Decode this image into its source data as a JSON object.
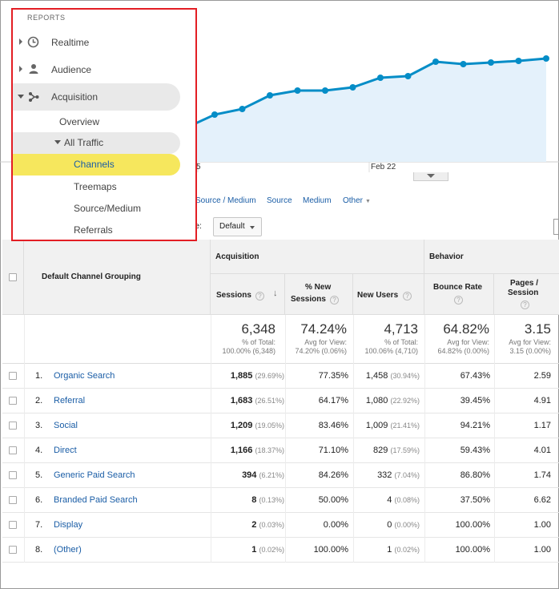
{
  "chart_data": {
    "type": "area",
    "x_tick_labels": [
      "5",
      "Feb 22"
    ],
    "values": [
      155,
      150,
      147,
      159,
      143,
      136,
      119,
      113,
      113,
      109,
      97,
      95,
      77,
      80,
      78,
      76,
      73
    ],
    "color": "#058dc7",
    "fill": "#e4f1fb"
  },
  "sidebar": {
    "title": "REPORTS",
    "items": [
      {
        "label": "Realtime",
        "icon": "clock-icon"
      },
      {
        "label": "Audience",
        "icon": "person-icon"
      },
      {
        "label": "Acquisition",
        "icon": "acquisition-icon"
      },
      {
        "label": "Overview"
      },
      {
        "label": "All Traffic"
      },
      {
        "label": "Channels"
      },
      {
        "label": "Treemaps"
      },
      {
        "label": "Source/Medium"
      },
      {
        "label": "Referrals"
      }
    ],
    "highlight_color": "#f6e75d",
    "border_color": "#e31e24"
  },
  "dimensions": {
    "links": [
      "Source / Medium",
      "Source",
      "Medium",
      "Other"
    ]
  },
  "plot_type": {
    "label": "pe:",
    "value": "Default"
  },
  "table": {
    "header": {
      "dimension": "Default Channel Grouping",
      "acquisition": "Acquisition",
      "behavior": "Behavior",
      "sessions": "Sessions",
      "new_sessions_1": "% New",
      "new_sessions_2": "Sessions",
      "new_users": "New Users",
      "bounce_rate": "Bounce Rate",
      "pages_1": "Pages /",
      "pages_2": "Session",
      "qmark": "?"
    },
    "totals": {
      "sessions": "6,348",
      "sessions_sub1": "% of Total:",
      "sessions_sub2": "100.00% (6,348)",
      "new_sessions": "74.24%",
      "new_sessions_sub1": "Avg for View:",
      "new_sessions_sub2": "74.20% (0.06%)",
      "new_users": "4,713",
      "new_users_sub1": "% of Total:",
      "new_users_sub2": "100.06% (4,710)",
      "bounce_rate": "64.82%",
      "bounce_rate_sub1": "Avg for View:",
      "bounce_rate_sub2": "64.82% (0.00%)",
      "pages": "3.15",
      "pages_sub1": "Avg for View:",
      "pages_sub2": "3.15 (0.00%)"
    },
    "rows": [
      {
        "num": "1.",
        "name": "Organic Search",
        "sessions": "1,885",
        "sessions_pct": "(29.69%)",
        "new_sessions": "77.35%",
        "new_users": "1,458",
        "new_users_pct": "(30.94%)",
        "bounce": "67.43%",
        "pages": "2.59"
      },
      {
        "num": "2.",
        "name": "Referral",
        "sessions": "1,683",
        "sessions_pct": "(26.51%)",
        "new_sessions": "64.17%",
        "new_users": "1,080",
        "new_users_pct": "(22.92%)",
        "bounce": "39.45%",
        "pages": "4.91"
      },
      {
        "num": "3.",
        "name": "Social",
        "sessions": "1,209",
        "sessions_pct": "(19.05%)",
        "new_sessions": "83.46%",
        "new_users": "1,009",
        "new_users_pct": "(21.41%)",
        "bounce": "94.21%",
        "pages": "1.17"
      },
      {
        "num": "4.",
        "name": "Direct",
        "sessions": "1,166",
        "sessions_pct": "(18.37%)",
        "new_sessions": "71.10%",
        "new_users": "829",
        "new_users_pct": "(17.59%)",
        "bounce": "59.43%",
        "pages": "4.01"
      },
      {
        "num": "5.",
        "name": "Generic Paid Search",
        "sessions": "394",
        "sessions_pct": "(6.21%)",
        "new_sessions": "84.26%",
        "new_users": "332",
        "new_users_pct": "(7.04%)",
        "bounce": "86.80%",
        "pages": "1.74"
      },
      {
        "num": "6.",
        "name": "Branded Paid Search",
        "sessions": "8",
        "sessions_pct": "(0.13%)",
        "new_sessions": "50.00%",
        "new_users": "4",
        "new_users_pct": "(0.08%)",
        "bounce": "37.50%",
        "pages": "6.62"
      },
      {
        "num": "7.",
        "name": "Display",
        "sessions": "2",
        "sessions_pct": "(0.03%)",
        "new_sessions": "0.00%",
        "new_users": "0",
        "new_users_pct": "(0.00%)",
        "bounce": "100.00%",
        "pages": "1.00"
      },
      {
        "num": "8.",
        "name": "(Other)",
        "sessions": "1",
        "sessions_pct": "(0.02%)",
        "new_sessions": "100.00%",
        "new_users": "1",
        "new_users_pct": "(0.02%)",
        "bounce": "100.00%",
        "pages": "1.00"
      }
    ]
  }
}
